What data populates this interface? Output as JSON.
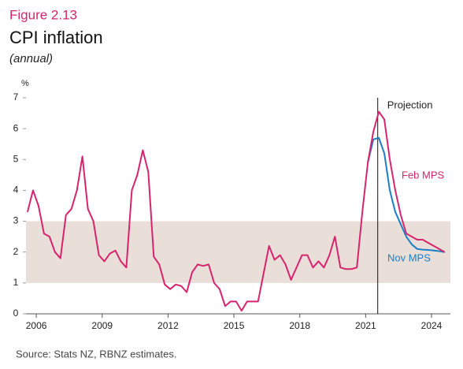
{
  "chart_data": {
    "type": "line",
    "figure_label": "Figure 2.13",
    "title": "CPI inflation",
    "subtitle": "(annual)",
    "y_unit": "%",
    "source": "Source: Stats NZ, RBNZ estimates.",
    "annotation": "Projection",
    "projection_x": 2021.55,
    "target_band": [
      1,
      3
    ],
    "band_color": "#eaded8",
    "x": [
      2005.6,
      2005.85,
      2006.1,
      2006.35,
      2006.6,
      2006.85,
      2007.1,
      2007.35,
      2007.6,
      2007.85,
      2008.1,
      2008.35,
      2008.6,
      2008.85,
      2009.1,
      2009.35,
      2009.6,
      2009.85,
      2010.1,
      2010.35,
      2010.6,
      2010.85,
      2011.1,
      2011.35,
      2011.6,
      2011.85,
      2012.1,
      2012.35,
      2012.6,
      2012.85,
      2013.1,
      2013.35,
      2013.6,
      2013.85,
      2014.1,
      2014.35,
      2014.6,
      2014.85,
      2015.1,
      2015.35,
      2015.6,
      2015.85,
      2016.1,
      2016.35,
      2016.6,
      2016.85,
      2017.1,
      2017.35,
      2017.6,
      2017.85,
      2018.1,
      2018.35,
      2018.6,
      2018.85,
      2019.1,
      2019.35,
      2019.6,
      2019.85,
      2020.1,
      2020.35,
      2020.6,
      2020.85,
      2021.1,
      2021.35,
      2021.6,
      2021.85,
      2022.1,
      2022.35,
      2022.6,
      2022.85,
      2023.1,
      2023.35,
      2023.6,
      2023.85,
      2024.1,
      2024.35,
      2024.6
    ],
    "series": [
      {
        "name": "Feb MPS",
        "color": "#d6246e",
        "values": [
          3.3,
          4.0,
          3.5,
          2.6,
          2.5,
          2.0,
          1.8,
          3.2,
          3.4,
          4.0,
          5.1,
          3.4,
          3.0,
          1.9,
          1.7,
          1.95,
          2.05,
          1.7,
          1.5,
          4.0,
          4.5,
          5.3,
          4.6,
          1.85,
          1.6,
          0.95,
          0.8,
          0.95,
          0.9,
          0.7,
          1.35,
          1.6,
          1.55,
          1.6,
          1.0,
          0.8,
          0.25,
          0.4,
          0.4,
          0.1,
          0.4,
          0.4,
          0.4,
          1.3,
          2.2,
          1.75,
          1.9,
          1.6,
          1.1,
          1.5,
          1.9,
          1.9,
          1.5,
          1.7,
          1.5,
          1.9,
          2.5,
          1.5,
          1.45,
          1.45,
          1.5,
          3.3,
          4.9,
          5.9,
          6.55,
          6.3,
          5.0,
          4.0,
          3.2,
          2.6,
          2.5,
          2.4,
          2.4,
          2.3,
          2.2,
          2.1,
          2.0
        ]
      },
      {
        "name": "Nov MPS",
        "color": "#1a7fc4",
        "values": [
          null,
          null,
          null,
          null,
          null,
          null,
          null,
          null,
          null,
          null,
          null,
          null,
          null,
          null,
          null,
          null,
          null,
          null,
          null,
          null,
          null,
          null,
          null,
          null,
          null,
          null,
          null,
          null,
          null,
          null,
          null,
          null,
          null,
          null,
          null,
          null,
          null,
          null,
          null,
          null,
          null,
          null,
          null,
          null,
          null,
          null,
          null,
          null,
          null,
          null,
          null,
          null,
          null,
          null,
          null,
          null,
          null,
          null,
          null,
          null,
          null,
          null,
          4.9,
          5.65,
          5.7,
          5.2,
          4.0,
          3.3,
          2.9,
          2.5,
          2.25,
          2.1,
          2.08,
          2.07,
          2.05,
          2.03,
          2.0
        ]
      }
    ],
    "xlim": [
      2005.53,
      2024.86
    ],
    "xticks": [
      2006,
      2009,
      2012,
      2015,
      2018,
      2021,
      2024
    ],
    "ylim": [
      0,
      7
    ],
    "yticks": [
      0,
      1,
      2,
      3,
      4,
      5,
      6,
      7
    ]
  }
}
